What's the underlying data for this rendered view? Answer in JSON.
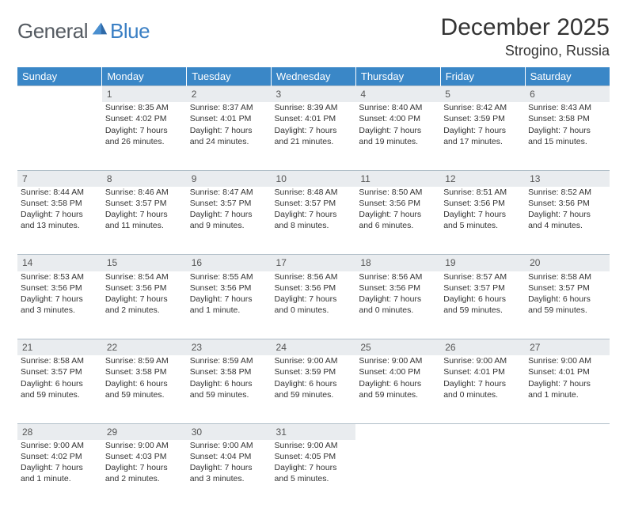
{
  "brand": {
    "text1": "General",
    "text2": "Blue"
  },
  "title": "December 2025",
  "location": "Strogino, Russia",
  "colors": {
    "header_bg": "#3a87c7",
    "header_text": "#ffffff",
    "daynum_bg": "#e9ecef",
    "daynum_border": "#b0bec8",
    "body_text": "#333333",
    "logo_gray": "#555b62",
    "logo_blue": "#3a7fc4",
    "page_bg": "#ffffff"
  },
  "dow": [
    "Sunday",
    "Monday",
    "Tuesday",
    "Wednesday",
    "Thursday",
    "Friday",
    "Saturday"
  ],
  "weeks": [
    {
      "nums": [
        "",
        "1",
        "2",
        "3",
        "4",
        "5",
        "6"
      ],
      "cells": [
        null,
        {
          "sunrise": "Sunrise: 8:35 AM",
          "sunset": "Sunset: 4:02 PM",
          "day1": "Daylight: 7 hours",
          "day2": "and 26 minutes."
        },
        {
          "sunrise": "Sunrise: 8:37 AM",
          "sunset": "Sunset: 4:01 PM",
          "day1": "Daylight: 7 hours",
          "day2": "and 24 minutes."
        },
        {
          "sunrise": "Sunrise: 8:39 AM",
          "sunset": "Sunset: 4:01 PM",
          "day1": "Daylight: 7 hours",
          "day2": "and 21 minutes."
        },
        {
          "sunrise": "Sunrise: 8:40 AM",
          "sunset": "Sunset: 4:00 PM",
          "day1": "Daylight: 7 hours",
          "day2": "and 19 minutes."
        },
        {
          "sunrise": "Sunrise: 8:42 AM",
          "sunset": "Sunset: 3:59 PM",
          "day1": "Daylight: 7 hours",
          "day2": "and 17 minutes."
        },
        {
          "sunrise": "Sunrise: 8:43 AM",
          "sunset": "Sunset: 3:58 PM",
          "day1": "Daylight: 7 hours",
          "day2": "and 15 minutes."
        }
      ]
    },
    {
      "nums": [
        "7",
        "8",
        "9",
        "10",
        "11",
        "12",
        "13"
      ],
      "cells": [
        {
          "sunrise": "Sunrise: 8:44 AM",
          "sunset": "Sunset: 3:58 PM",
          "day1": "Daylight: 7 hours",
          "day2": "and 13 minutes."
        },
        {
          "sunrise": "Sunrise: 8:46 AM",
          "sunset": "Sunset: 3:57 PM",
          "day1": "Daylight: 7 hours",
          "day2": "and 11 minutes."
        },
        {
          "sunrise": "Sunrise: 8:47 AM",
          "sunset": "Sunset: 3:57 PM",
          "day1": "Daylight: 7 hours",
          "day2": "and 9 minutes."
        },
        {
          "sunrise": "Sunrise: 8:48 AM",
          "sunset": "Sunset: 3:57 PM",
          "day1": "Daylight: 7 hours",
          "day2": "and 8 minutes."
        },
        {
          "sunrise": "Sunrise: 8:50 AM",
          "sunset": "Sunset: 3:56 PM",
          "day1": "Daylight: 7 hours",
          "day2": "and 6 minutes."
        },
        {
          "sunrise": "Sunrise: 8:51 AM",
          "sunset": "Sunset: 3:56 PM",
          "day1": "Daylight: 7 hours",
          "day2": "and 5 minutes."
        },
        {
          "sunrise": "Sunrise: 8:52 AM",
          "sunset": "Sunset: 3:56 PM",
          "day1": "Daylight: 7 hours",
          "day2": "and 4 minutes."
        }
      ]
    },
    {
      "nums": [
        "14",
        "15",
        "16",
        "17",
        "18",
        "19",
        "20"
      ],
      "cells": [
        {
          "sunrise": "Sunrise: 8:53 AM",
          "sunset": "Sunset: 3:56 PM",
          "day1": "Daylight: 7 hours",
          "day2": "and 3 minutes."
        },
        {
          "sunrise": "Sunrise: 8:54 AM",
          "sunset": "Sunset: 3:56 PM",
          "day1": "Daylight: 7 hours",
          "day2": "and 2 minutes."
        },
        {
          "sunrise": "Sunrise: 8:55 AM",
          "sunset": "Sunset: 3:56 PM",
          "day1": "Daylight: 7 hours",
          "day2": "and 1 minute."
        },
        {
          "sunrise": "Sunrise: 8:56 AM",
          "sunset": "Sunset: 3:56 PM",
          "day1": "Daylight: 7 hours",
          "day2": "and 0 minutes."
        },
        {
          "sunrise": "Sunrise: 8:56 AM",
          "sunset": "Sunset: 3:56 PM",
          "day1": "Daylight: 7 hours",
          "day2": "and 0 minutes."
        },
        {
          "sunrise": "Sunrise: 8:57 AM",
          "sunset": "Sunset: 3:57 PM",
          "day1": "Daylight: 6 hours",
          "day2": "and 59 minutes."
        },
        {
          "sunrise": "Sunrise: 8:58 AM",
          "sunset": "Sunset: 3:57 PM",
          "day1": "Daylight: 6 hours",
          "day2": "and 59 minutes."
        }
      ]
    },
    {
      "nums": [
        "21",
        "22",
        "23",
        "24",
        "25",
        "26",
        "27"
      ],
      "cells": [
        {
          "sunrise": "Sunrise: 8:58 AM",
          "sunset": "Sunset: 3:57 PM",
          "day1": "Daylight: 6 hours",
          "day2": "and 59 minutes."
        },
        {
          "sunrise": "Sunrise: 8:59 AM",
          "sunset": "Sunset: 3:58 PM",
          "day1": "Daylight: 6 hours",
          "day2": "and 59 minutes."
        },
        {
          "sunrise": "Sunrise: 8:59 AM",
          "sunset": "Sunset: 3:58 PM",
          "day1": "Daylight: 6 hours",
          "day2": "and 59 minutes."
        },
        {
          "sunrise": "Sunrise: 9:00 AM",
          "sunset": "Sunset: 3:59 PM",
          "day1": "Daylight: 6 hours",
          "day2": "and 59 minutes."
        },
        {
          "sunrise": "Sunrise: 9:00 AM",
          "sunset": "Sunset: 4:00 PM",
          "day1": "Daylight: 6 hours",
          "day2": "and 59 minutes."
        },
        {
          "sunrise": "Sunrise: 9:00 AM",
          "sunset": "Sunset: 4:01 PM",
          "day1": "Daylight: 7 hours",
          "day2": "and 0 minutes."
        },
        {
          "sunrise": "Sunrise: 9:00 AM",
          "sunset": "Sunset: 4:01 PM",
          "day1": "Daylight: 7 hours",
          "day2": "and 1 minute."
        }
      ]
    },
    {
      "nums": [
        "28",
        "29",
        "30",
        "31",
        "",
        "",
        ""
      ],
      "cells": [
        {
          "sunrise": "Sunrise: 9:00 AM",
          "sunset": "Sunset: 4:02 PM",
          "day1": "Daylight: 7 hours",
          "day2": "and 1 minute."
        },
        {
          "sunrise": "Sunrise: 9:00 AM",
          "sunset": "Sunset: 4:03 PM",
          "day1": "Daylight: 7 hours",
          "day2": "and 2 minutes."
        },
        {
          "sunrise": "Sunrise: 9:00 AM",
          "sunset": "Sunset: 4:04 PM",
          "day1": "Daylight: 7 hours",
          "day2": "and 3 minutes."
        },
        {
          "sunrise": "Sunrise: 9:00 AM",
          "sunset": "Sunset: 4:05 PM",
          "day1": "Daylight: 7 hours",
          "day2": "and 5 minutes."
        },
        null,
        null,
        null
      ]
    }
  ]
}
